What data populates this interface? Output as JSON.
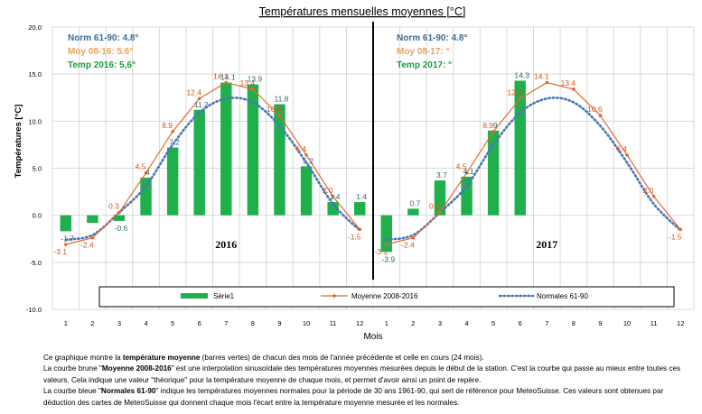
{
  "chart_data": {
    "type": "bar",
    "title": "Températures mensuelles moyennes  [°C]",
    "xlabel": "Mois",
    "ylabel": "Températures [°C]",
    "ylim": [
      -10.0,
      20.0
    ],
    "yticks": [
      "20.0",
      "15.0",
      "10.0",
      "5.0",
      "0.0",
      "-5.0",
      "-10.0"
    ],
    "categories": [
      "1",
      "2",
      "3",
      "4",
      "5",
      "6",
      "7",
      "8",
      "9",
      "10",
      "11",
      "12",
      "1",
      "2",
      "3",
      "4",
      "5",
      "6",
      "7",
      "8",
      "9",
      "10",
      "11",
      "12"
    ],
    "grid": true,
    "legend_position": "bottom",
    "panels": [
      {
        "year_label": "2016",
        "norm_label": "Norm 61-90: 4.8°",
        "moy_label": "Moy 08-16:  5.6°",
        "temp_label": "Temp 2016:  5,6°"
      },
      {
        "year_label": "2017",
        "norm_label": "Norm 61-90: 4.8°",
        "moy_label": "Moy 08-17:  °",
        "temp_label": "Temp 2017:  °"
      }
    ],
    "series": [
      {
        "name": "Série1",
        "type": "bar",
        "color": "#1fb04b",
        "values": [
          -1.7,
          -0.8,
          -0.6,
          4.0,
          7.2,
          11.2,
          14.1,
          13.9,
          11.8,
          5.2,
          1.4,
          1.4,
          -3.9,
          0.7,
          3.7,
          4.1,
          9.0,
          14.3,
          null,
          null,
          null,
          null,
          null,
          null
        ],
        "labels": [
          "-1.7",
          "",
          "-0.6",
          "4",
          "7.2",
          "11.2",
          "14.1",
          "13.9",
          "11.8",
          "5.2",
          "1.4",
          "1.4",
          "-3.9",
          "0.7",
          "3.7",
          "4.1",
          "9",
          "14.3",
          "",
          "",
          "",
          "",
          "",
          ""
        ]
      },
      {
        "name": "Moyenne 2008-2016",
        "type": "line",
        "color": "#e2692e",
        "values": [
          -3.1,
          -2.4,
          0.3,
          4.5,
          8.9,
          12.4,
          14.1,
          13.4,
          10.6,
          6.4,
          2.0,
          -1.5,
          -3.1,
          -2.4,
          0.3,
          4.5,
          8.9,
          12.4,
          14.1,
          13.4,
          10.6,
          6.4,
          2.0,
          -1.5
        ],
        "labels": [
          "-3.1",
          "-2.4",
          "0.3",
          "4.5",
          "8.9",
          "12.4",
          "14.1",
          "13.4",
          "10.6",
          "6.4",
          "2.0",
          "-1.5",
          "-3.1",
          "-2.4",
          "0.3",
          "4.5",
          "8.9",
          "12.4",
          "14.1",
          "13.4",
          "10.6",
          "6.4",
          "2.0",
          "-1.5"
        ]
      },
      {
        "name": "Normales 61-90",
        "type": "line",
        "dashed": true,
        "color": "#4a76b8",
        "values": [
          -2.6,
          -2.1,
          0.3,
          3.1,
          7.5,
          10.9,
          12.4,
          12.0,
          9.5,
          5.6,
          1.2,
          -1.6,
          -2.6,
          -2.1,
          0.3,
          3.1,
          7.5,
          10.9,
          12.4,
          12.0,
          9.5,
          5.6,
          1.2,
          -1.6
        ]
      }
    ]
  },
  "notes": {
    "p1_pre": "Ce graphique montre la ",
    "p1_bold": "température moyenne",
    "p1_post": " (barres vertes) de chacun des mois de l'année précédente et celle en cours (24 mois).",
    "p2_pre": "La courbe brune \"",
    "p2_bold": "Moyenne 2008-2016",
    "p2_post": "\" est une interpolation sinusoïdale des  températures moyennes mesurées depuis le début de la station. C'est la courbe qui passe au mieux entre toutes ces valeurs. Cela indique une valeur \"théorique\" pour la température moyenne de chaque mois, et permet d'avoir ainsi un point de repère.",
    "p3_pre": "La courbe bleue \"",
    "p3_bold": "Normales 61-90",
    "p3_post": "\" indique les  températures moyennes normales pour la période de 30 ans 1961-90, qui sert de référence pour MeteoSuisse. Ces valeurs sont obtenues par déduction des cartes de MeteoSuisse qui donnent chaque mois l'écart entre la température moyenne mesurée et les normales."
  }
}
